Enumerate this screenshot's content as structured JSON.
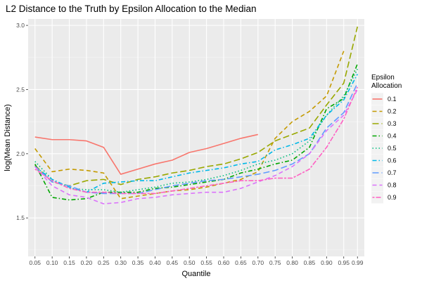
{
  "chart_data": {
    "type": "line",
    "title": "L2 Distance to the Truth by Epsilon Allocation to the Median",
    "xlabel": "Quantile",
    "ylabel": "log(Mean Distance)",
    "x": [
      0.05,
      0.1,
      0.15,
      0.2,
      0.25,
      0.3,
      0.35,
      0.4,
      0.45,
      0.5,
      0.55,
      0.6,
      0.65,
      0.7,
      0.75,
      0.8,
      0.85,
      0.9,
      0.95,
      0.99
    ],
    "x_tick_labels": [
      "0.05",
      "0.10",
      "0.15",
      "0.20",
      "0.25",
      "0.30",
      "0.35",
      "0.40",
      "0.45",
      "0.50",
      "0.55",
      "0.60",
      "0.65",
      "0.70",
      "0.75",
      "0.80",
      "0.85",
      "0.90",
      "0.95",
      "0.99"
    ],
    "y_ticks": [
      1.5,
      2.0,
      2.5,
      3.0
    ],
    "y_tick_labels": [
      "1.5",
      "2.0",
      "2.5",
      "3.0"
    ],
    "xlim": [
      0.03,
      1.01
    ],
    "ylim": [
      1.2,
      3.05
    ],
    "grid": true,
    "legend_title": "Epsilon\nAllocation",
    "legend_position": "right",
    "series": [
      {
        "name": "0.1",
        "color": "#F8766D",
        "dash": "solid",
        "values": [
          2.13,
          2.11,
          2.11,
          2.1,
          2.05,
          1.84,
          1.88,
          1.92,
          1.95,
          2.01,
          2.04,
          2.08,
          2.12,
          2.15,
          null,
          null,
          null,
          null,
          null,
          null
        ]
      },
      {
        "name": "0.2",
        "color": "#C49A00",
        "dash": "dash",
        "values": [
          2.04,
          1.86,
          1.88,
          1.87,
          1.85,
          1.65,
          1.67,
          1.69,
          1.71,
          1.72,
          1.74,
          1.77,
          1.8,
          1.86,
          2.12,
          2.25,
          2.33,
          2.45,
          2.8,
          null
        ]
      },
      {
        "name": "0.3",
        "color": "#99A800",
        "dash": "longdash",
        "values": [
          1.91,
          1.78,
          1.75,
          1.79,
          1.8,
          1.76,
          1.8,
          1.82,
          1.85,
          1.87,
          1.9,
          1.92,
          1.96,
          2.01,
          2.1,
          2.15,
          2.2,
          2.38,
          2.55,
          2.99
        ]
      },
      {
        "name": "0.4",
        "color": "#00A600",
        "dash": "dashdot",
        "values": [
          1.92,
          1.66,
          1.64,
          1.65,
          1.7,
          1.7,
          1.7,
          1.73,
          1.74,
          1.76,
          1.78,
          1.8,
          1.85,
          1.88,
          1.92,
          1.95,
          2.05,
          2.35,
          2.43,
          2.7
        ]
      },
      {
        "name": "0.5",
        "color": "#00BF7D",
        "dash": "dotted",
        "values": [
          1.94,
          1.8,
          1.73,
          1.72,
          1.72,
          1.7,
          1.72,
          1.74,
          1.77,
          1.78,
          1.8,
          1.83,
          1.87,
          1.92,
          1.95,
          2.0,
          2.1,
          2.3,
          2.45,
          2.66
        ]
      },
      {
        "name": "0.6",
        "color": "#00B8E7",
        "dash": "dashdot",
        "values": [
          1.9,
          1.8,
          1.74,
          1.7,
          1.77,
          1.78,
          1.79,
          1.79,
          1.82,
          1.85,
          1.87,
          1.89,
          1.92,
          1.94,
          2.03,
          2.07,
          2.12,
          2.3,
          2.42,
          2.62
        ]
      },
      {
        "name": "0.7",
        "color": "#619CFF",
        "dash": "longdash",
        "values": [
          1.9,
          1.78,
          1.75,
          1.7,
          1.69,
          1.69,
          1.69,
          1.72,
          1.75,
          1.77,
          1.79,
          1.8,
          1.82,
          1.84,
          1.87,
          1.92,
          2.0,
          2.2,
          2.32,
          2.55
        ]
      },
      {
        "name": "0.8",
        "color": "#DB72FB",
        "dash": "dash",
        "values": [
          1.9,
          1.75,
          1.68,
          1.66,
          1.61,
          1.62,
          1.65,
          1.66,
          1.68,
          1.69,
          1.7,
          1.7,
          1.73,
          1.78,
          1.83,
          1.9,
          2.0,
          2.18,
          2.3,
          2.5
        ]
      },
      {
        "name": "0.9",
        "color": "#FF61C3",
        "dash": "twodash",
        "values": [
          1.88,
          1.79,
          1.73,
          1.7,
          1.7,
          1.69,
          1.69,
          1.69,
          1.71,
          1.73,
          1.75,
          1.77,
          1.79,
          1.79,
          1.81,
          1.81,
          1.88,
          2.05,
          2.27,
          2.52
        ]
      }
    ]
  }
}
